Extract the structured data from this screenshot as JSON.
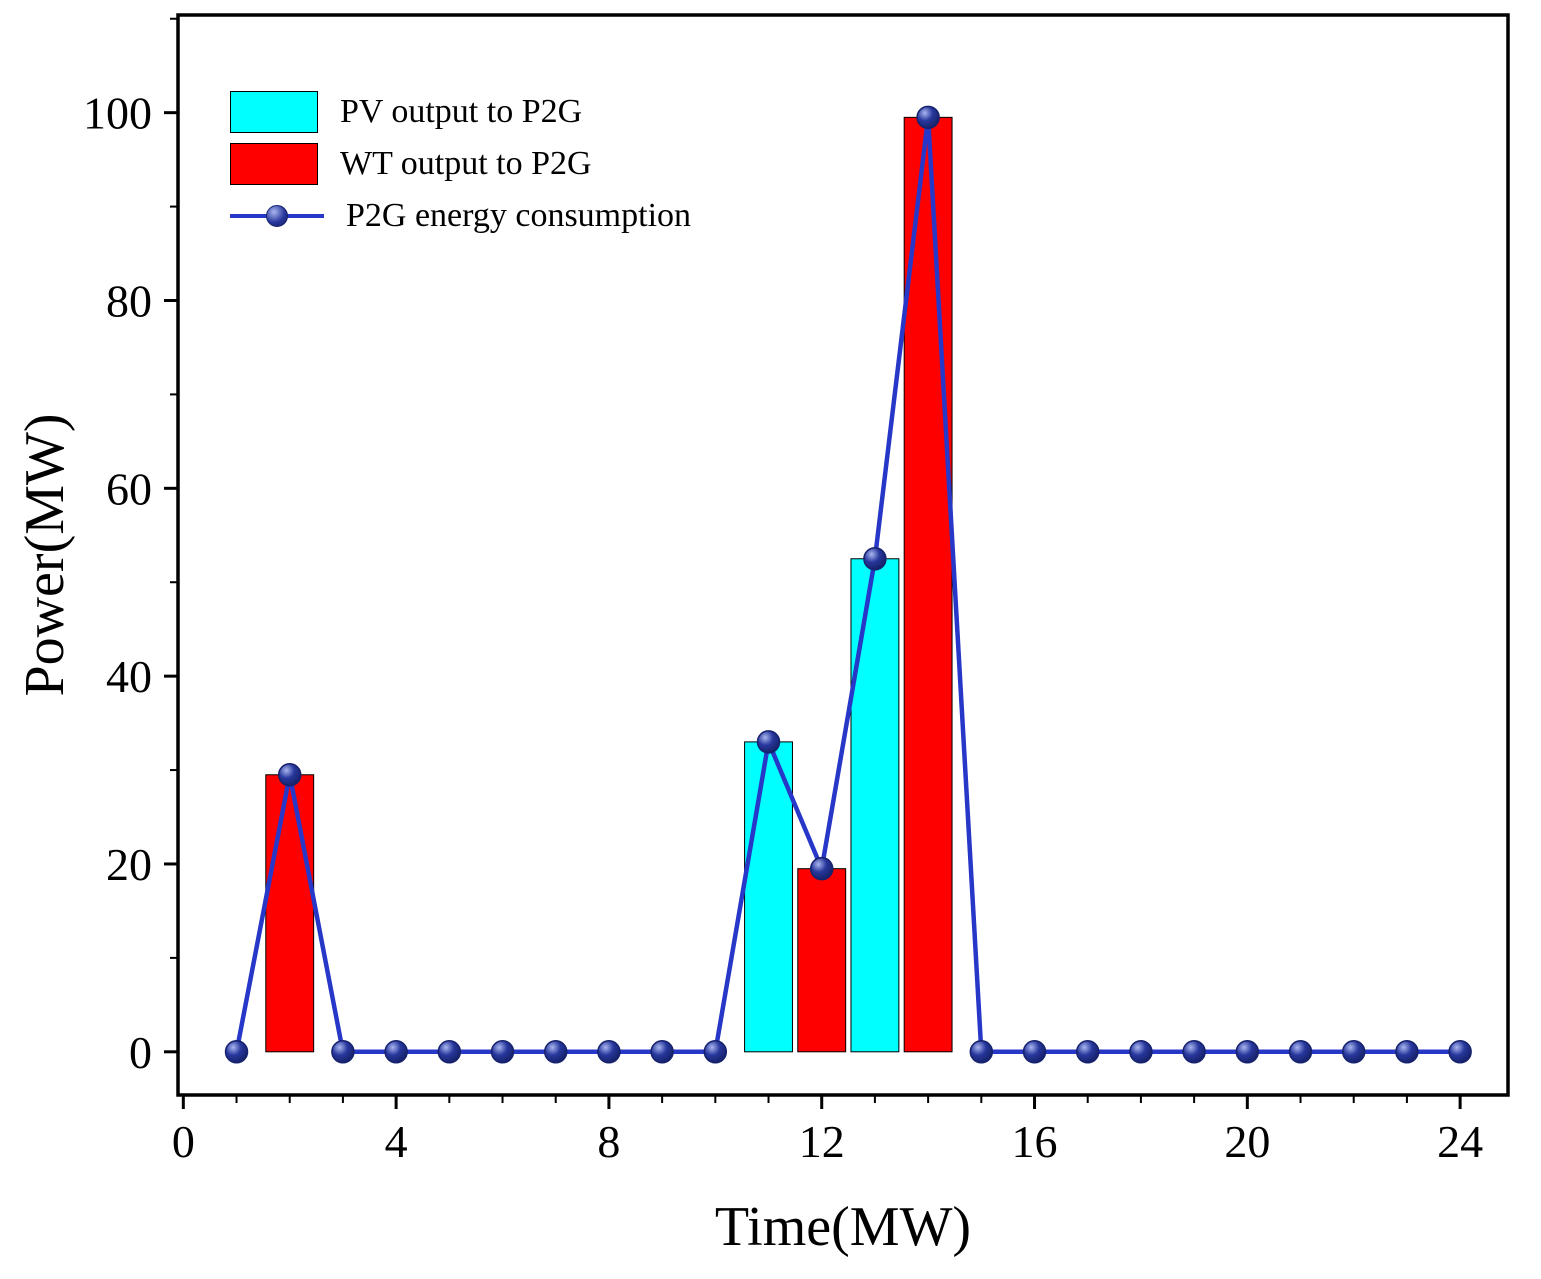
{
  "chart_data": {
    "type": "bar",
    "title": "",
    "xlabel": "Time(MW)",
    "ylabel": "Power(MW)",
    "xlim": [
      -0.1,
      24.9
    ],
    "ylim": [
      -4.6,
      110.4
    ],
    "x_major_ticks": [
      0,
      4,
      8,
      12,
      16,
      20,
      24
    ],
    "x_minor_step": 1,
    "y_major_ticks": [
      0,
      20,
      40,
      60,
      80,
      100
    ],
    "y_minor_step": 10,
    "grid": false,
    "legend_position": "upper-left",
    "bar_width": 0.9,
    "series": [
      {
        "name": "PV output to P2G",
        "type": "bar",
        "color": "#00ffff",
        "x": [
          11,
          13
        ],
        "values": [
          33,
          52.5
        ]
      },
      {
        "name": "WT output to P2G",
        "type": "bar",
        "color": "#ff0000",
        "x": [
          2,
          12,
          14
        ],
        "values": [
          29.5,
          19.5,
          99.5
        ]
      },
      {
        "name": "P2G energy consumption",
        "type": "line",
        "color": "#2737c8",
        "marker_color": "#1e2f8c",
        "x": [
          1,
          2,
          3,
          4,
          5,
          6,
          7,
          8,
          9,
          10,
          11,
          12,
          13,
          14,
          15,
          16,
          17,
          18,
          19,
          20,
          21,
          22,
          23,
          24
        ],
        "values": [
          0,
          29.5,
          0,
          0,
          0,
          0,
          0,
          0,
          0,
          0,
          33,
          19.5,
          52.5,
          99.5,
          0,
          0,
          0,
          0,
          0,
          0,
          0,
          0,
          0,
          0
        ]
      }
    ]
  }
}
